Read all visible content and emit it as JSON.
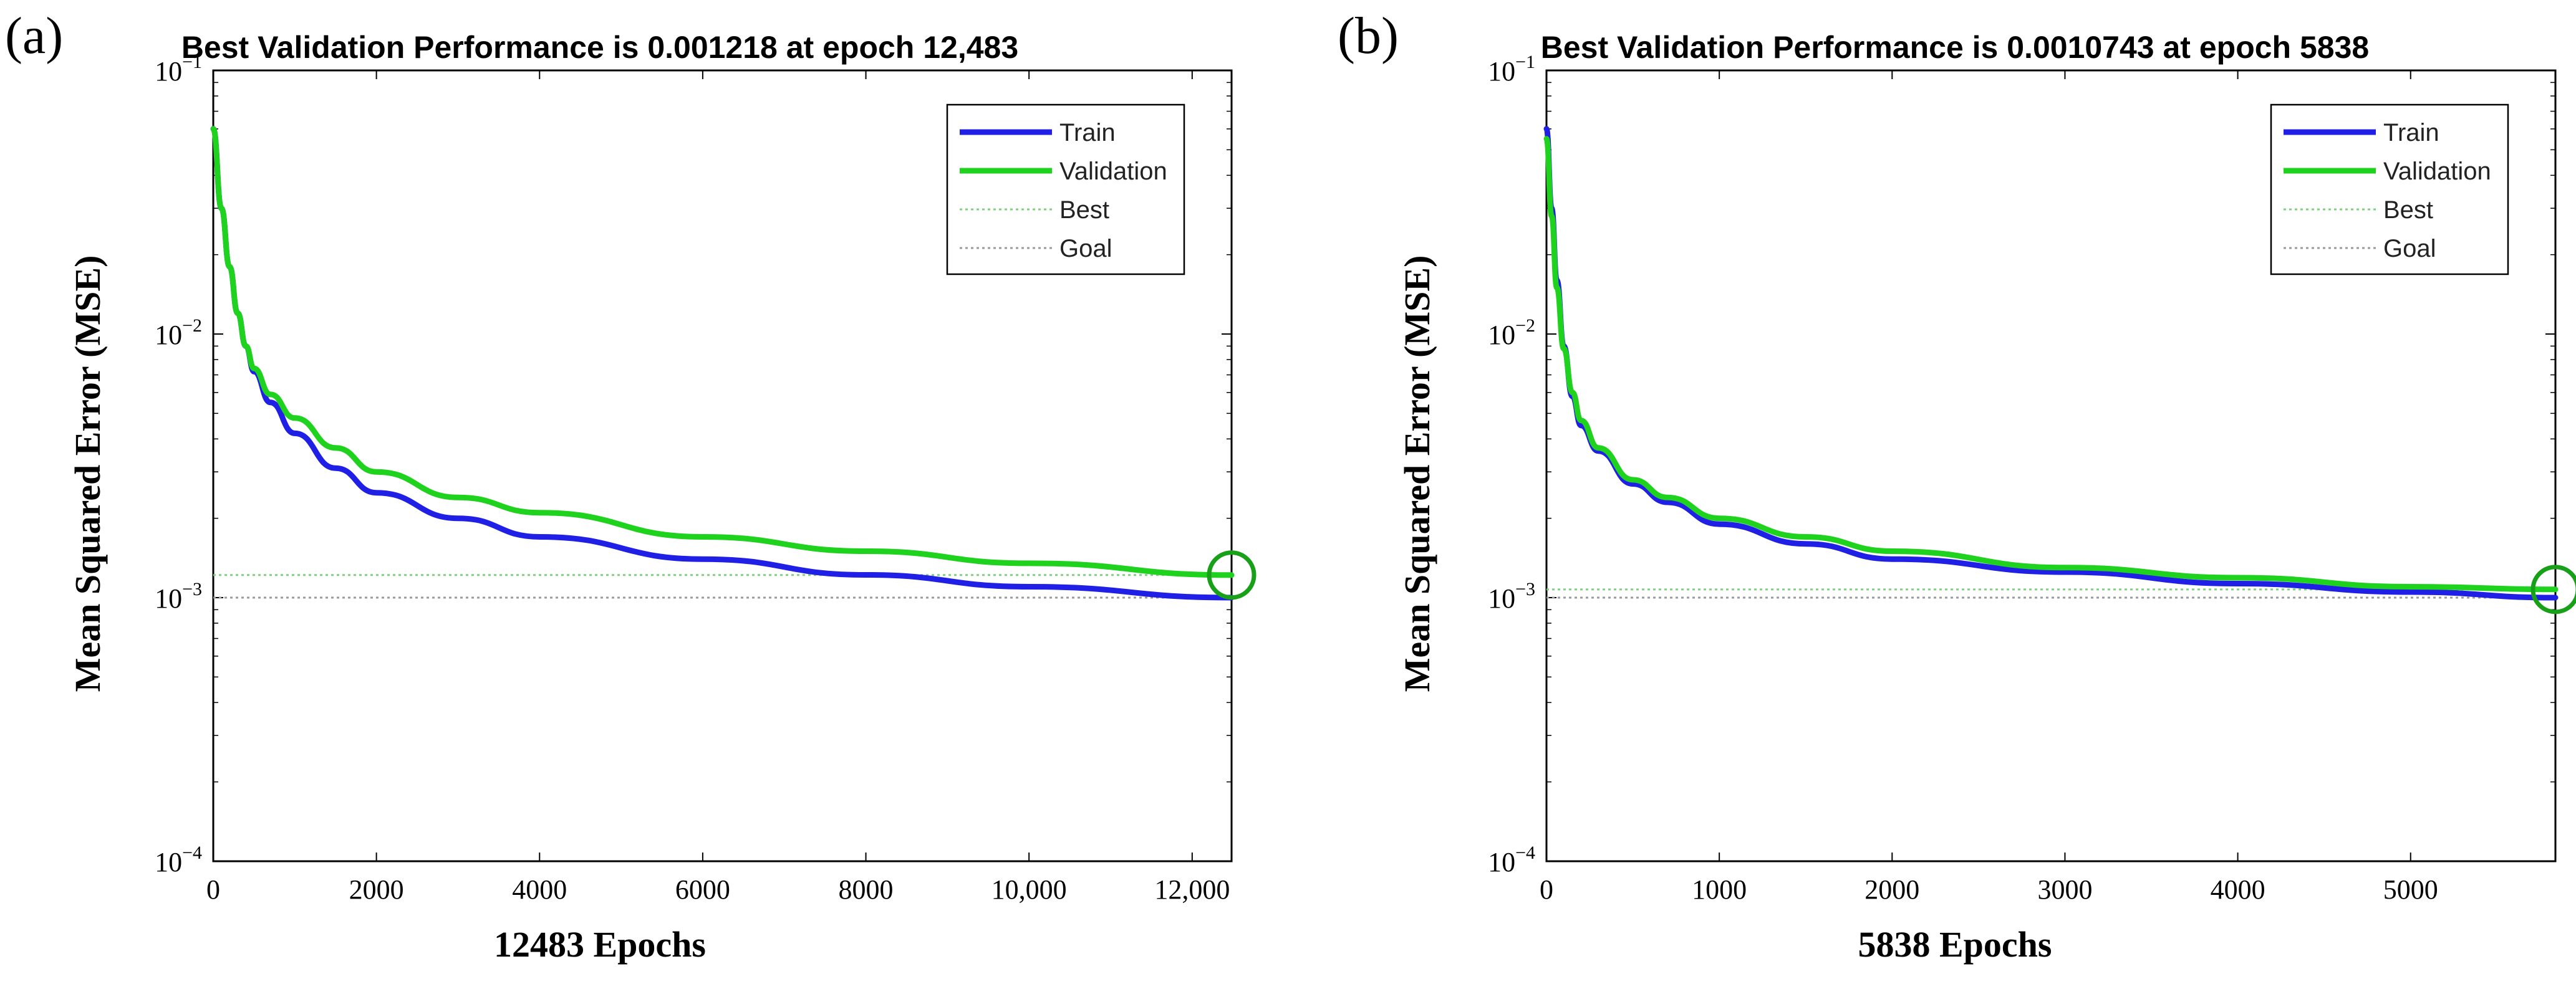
{
  "colors": {
    "train": "#1f1fe6",
    "validation": "#1ed21e",
    "best": "#7fd17f",
    "goal": "#9a9a9a",
    "axes": "#000000",
    "circle": "#18a018"
  },
  "legend_labels": [
    "Train",
    "Validation",
    "Best",
    "Goal"
  ],
  "chart_data": [
    {
      "type": "line",
      "panel_label": "(a)",
      "title": "Best Validation Performance is 0.001218 at epoch 12,483",
      "xlabel": "12483 Epochs",
      "ylabel": "Mean Squared Error (MSE)",
      "y_scale": "log",
      "xlim": [
        0,
        12483
      ],
      "ylim": [
        0.0001,
        0.1
      ],
      "x_ticks": [
        0,
        2000,
        4000,
        6000,
        8000,
        10000,
        12000
      ],
      "x_tick_labels": [
        "0",
        "2000",
        "4000",
        "6000",
        "8000",
        "10,000",
        "12,000"
      ],
      "y_ticks": [
        0.1,
        0.01,
        0.001,
        0.0001
      ],
      "legend_placement": "top-right",
      "grid": false,
      "best": {
        "epoch": 12483,
        "value": 0.001218
      },
      "goal": 0.001,
      "series": [
        {
          "name": "Train",
          "x": [
            0,
            100,
            200,
            300,
            400,
            500,
            700,
            1000,
            1500,
            2000,
            3000,
            4000,
            6000,
            8000,
            10000,
            12483
          ],
          "y": [
            0.06,
            0.03,
            0.018,
            0.012,
            0.009,
            0.0072,
            0.0055,
            0.0042,
            0.0031,
            0.0025,
            0.002,
            0.0017,
            0.0014,
            0.00122,
            0.0011,
            0.001
          ]
        },
        {
          "name": "Validation",
          "x": [
            0,
            100,
            200,
            300,
            400,
            500,
            700,
            1000,
            1500,
            2000,
            3000,
            4000,
            6000,
            8000,
            10000,
            12483
          ],
          "y": [
            0.06,
            0.03,
            0.018,
            0.012,
            0.009,
            0.0074,
            0.0059,
            0.0048,
            0.0037,
            0.003,
            0.0024,
            0.0021,
            0.0017,
            0.0015,
            0.00135,
            0.001218
          ]
        }
      ]
    },
    {
      "type": "line",
      "panel_label": "(b)",
      "title": "Best Validation Performance is 0.0010743 at epoch 5838",
      "xlabel": "5838 Epochs",
      "ylabel": "Mean Squared Error (MSE)",
      "y_scale": "log",
      "xlim": [
        0,
        5838
      ],
      "ylim": [
        0.0001,
        0.1
      ],
      "x_ticks": [
        0,
        1000,
        2000,
        3000,
        4000,
        5000
      ],
      "x_tick_labels": [
        "0",
        "1000",
        "2000",
        "3000",
        "4000",
        "5000"
      ],
      "y_ticks": [
        0.1,
        0.01,
        0.001,
        0.0001
      ],
      "legend_placement": "top-right",
      "grid": false,
      "best": {
        "epoch": 5838,
        "value": 0.0010743
      },
      "goal": 0.001,
      "series": [
        {
          "name": "Train",
          "x": [
            0,
            30,
            60,
            100,
            150,
            200,
            300,
            500,
            700,
            1000,
            1500,
            2000,
            3000,
            4000,
            5000,
            5838
          ],
          "y": [
            0.06,
            0.03,
            0.016,
            0.009,
            0.0058,
            0.0045,
            0.0036,
            0.0027,
            0.0023,
            0.0019,
            0.0016,
            0.0014,
            0.00125,
            0.00113,
            0.00105,
            0.001
          ]
        },
        {
          "name": "Validation",
          "x": [
            0,
            30,
            60,
            100,
            150,
            200,
            300,
            500,
            700,
            1000,
            1500,
            2000,
            3000,
            4000,
            5000,
            5838
          ],
          "y": [
            0.055,
            0.028,
            0.015,
            0.0088,
            0.006,
            0.0047,
            0.0037,
            0.0028,
            0.0024,
            0.002,
            0.0017,
            0.0015,
            0.0013,
            0.00119,
            0.0011,
            0.0010743
          ]
        }
      ]
    }
  ]
}
